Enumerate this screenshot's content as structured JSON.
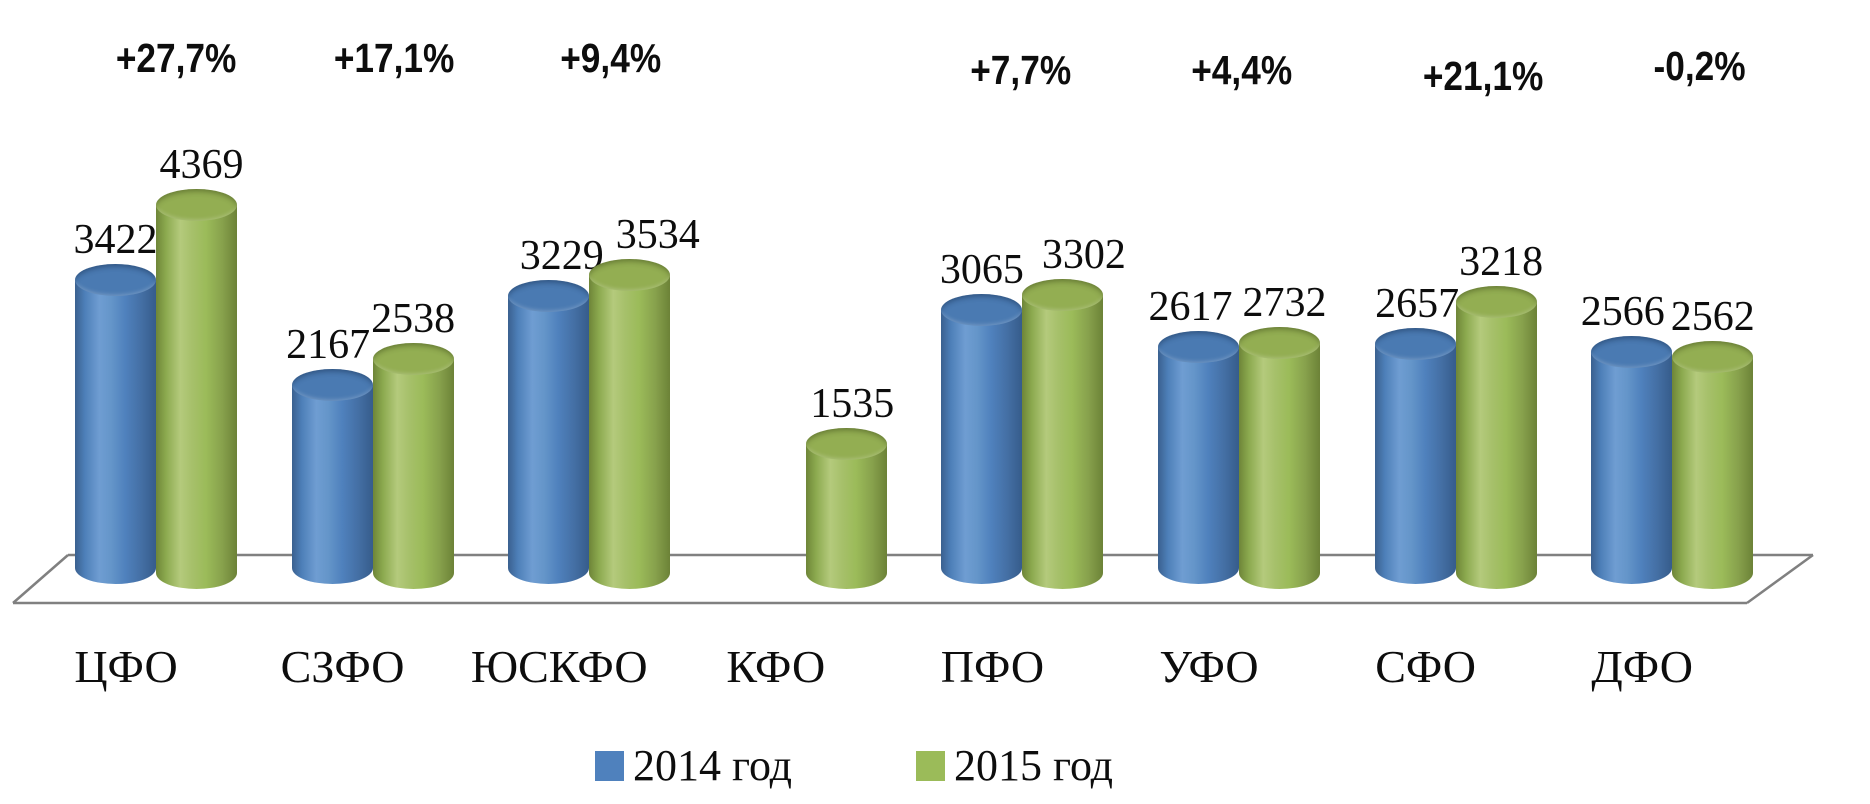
{
  "chart_data": {
    "type": "bar",
    "style": "3d-cylinder",
    "title": "",
    "categories": [
      "ЦФО",
      "СЗФО",
      "ЮСКФО",
      "КФО",
      "ПФО",
      "УФО",
      "СФО",
      "ДФО"
    ],
    "series": [
      {
        "name": "2014 год",
        "color": "#4F81BD",
        "values": [
          3422,
          2167,
          3229,
          null,
          3065,
          2617,
          2657,
          2566
        ]
      },
      {
        "name": "2015 год",
        "color": "#9BBB59",
        "values": [
          4369,
          2538,
          3534,
          1535,
          3302,
          2732,
          3218,
          2562
        ]
      }
    ],
    "change_labels": [
      "+27,7%",
      "+17,1%",
      "+9,4%",
      "",
      "+7,7%",
      "+4,4%",
      "+21,1%",
      "-0,2%"
    ],
    "value_labels_shown": true,
    "grid": false,
    "y_axis_shown": false,
    "ylim": [
      0,
      4700
    ],
    "legend_position": "bottom",
    "floor_color": "#808080",
    "background": "#FFFFFF"
  }
}
